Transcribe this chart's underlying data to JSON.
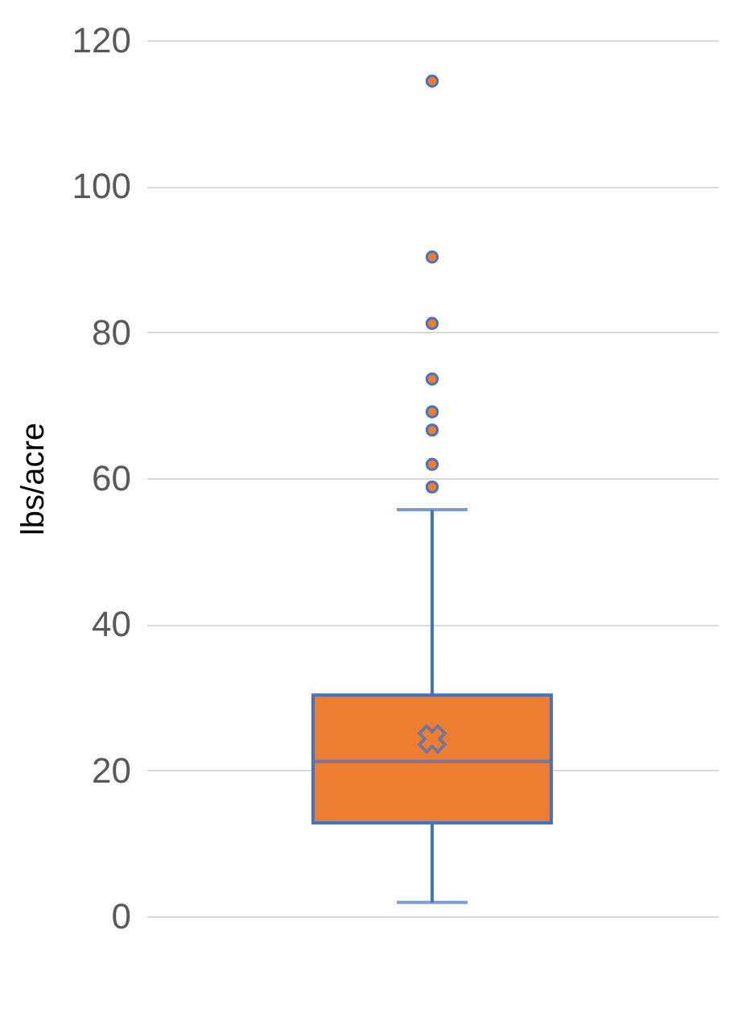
{
  "chart_data": {
    "type": "box",
    "ylabel": "lbs/acre",
    "categories": [
      null
    ],
    "boxes": [
      {
        "low": 1.9,
        "q1": 12.8,
        "median": 21.2,
        "q3": 30.3,
        "high": 55.7,
        "mean": 24.3,
        "outliers": [
          58.8,
          61.9,
          66.6,
          69.1,
          73.6,
          81.2,
          90.3,
          114.4
        ]
      }
    ],
    "color": "#ed7d31",
    "ylim": [
      0,
      120
    ],
    "yticks": [
      0,
      20,
      40,
      60,
      80,
      100,
      120
    ],
    "grid": "y",
    "tick_labels": "y"
  }
}
